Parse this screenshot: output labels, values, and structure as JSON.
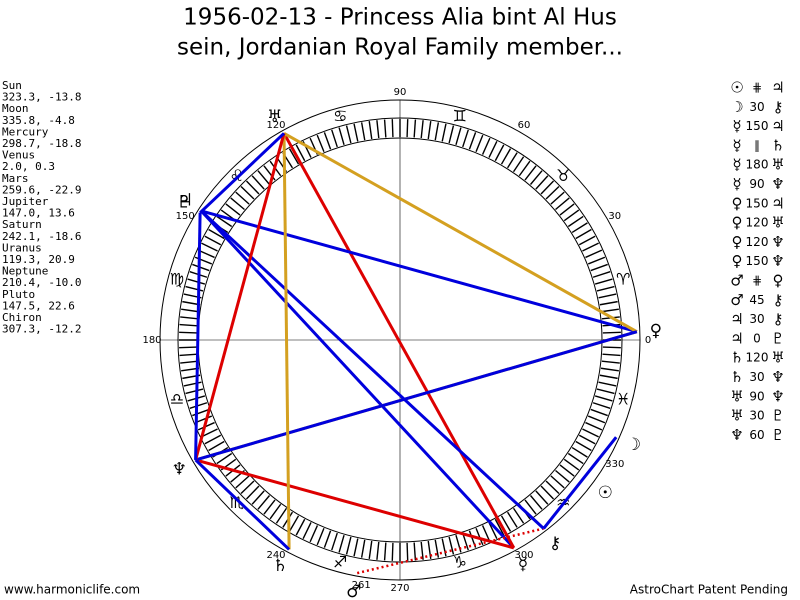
{
  "title": [
    "1956-02-13 - Princess Alia bint Al Hus",
    "sein, Jordanian Royal Family member..."
  ],
  "planets": [
    {
      "name": "Sun",
      "position": "323.3, -13.8",
      "glyph": "☉"
    },
    {
      "name": "Moon",
      "position": "335.8, -4.8",
      "glyph": "☽"
    },
    {
      "name": "Mercury",
      "position": "298.7, -18.8",
      "glyph": "☿"
    },
    {
      "name": "Venus",
      "position": "2.0, 0.3",
      "glyph": "♀"
    },
    {
      "name": "Mars",
      "position": "259.6, -22.9",
      "glyph": "♂"
    },
    {
      "name": "Jupiter",
      "position": "147.0, 13.6",
      "glyph": "♃"
    },
    {
      "name": "Saturn",
      "position": "242.1, -18.6",
      "glyph": "♄"
    },
    {
      "name": "Uranus",
      "position": "119.3, 20.9",
      "glyph": "♅"
    },
    {
      "name": "Neptune",
      "position": "210.4, -10.0",
      "glyph": "♆"
    },
    {
      "name": "Pluto",
      "position": "147.5, 22.6",
      "glyph": "♇"
    },
    {
      "name": "Chiron",
      "position": "307.3, -12.2",
      "glyph": "⚷"
    }
  ],
  "aspects": [
    {
      "a": "☉",
      "angle": "⋕",
      "b": "♃"
    },
    {
      "a": "☽",
      "angle": "30",
      "b": "⚷"
    },
    {
      "a": "☿",
      "angle": "150",
      "b": "♃"
    },
    {
      "a": "☿",
      "angle": "∥",
      "b": "♄"
    },
    {
      "a": "☿",
      "angle": "180",
      "b": "♅"
    },
    {
      "a": "☿",
      "angle": "90",
      "b": "♆"
    },
    {
      "a": "♀",
      "angle": "150",
      "b": "♃"
    },
    {
      "a": "♀",
      "angle": "120",
      "b": "♅"
    },
    {
      "a": "♀",
      "angle": "120",
      "b": "♆"
    },
    {
      "a": "♀",
      "angle": "150",
      "b": "♆"
    },
    {
      "a": "♂",
      "angle": "⋕",
      "b": "♀"
    },
    {
      "a": "♂",
      "angle": "45",
      "b": "⚷"
    },
    {
      "a": "♃",
      "angle": "30",
      "b": "⚷"
    },
    {
      "a": "♃",
      "angle": "0",
      "b": "♇"
    },
    {
      "a": "♄",
      "angle": "120",
      "b": "♅"
    },
    {
      "a": "♄",
      "angle": "30",
      "b": "♆"
    },
    {
      "a": "♅",
      "angle": "90",
      "b": "♆"
    },
    {
      "a": "♅",
      "angle": "30",
      "b": "♇"
    },
    {
      "a": "♆",
      "angle": "60",
      "b": "♇"
    }
  ],
  "signs": [
    "♈",
    "♉",
    "♊",
    "♋",
    "♌",
    "♍",
    "♎",
    "♏",
    "♐",
    "♑",
    "♒",
    "♓"
  ],
  "degree_labels": [
    0,
    30,
    60,
    90,
    120,
    150,
    180,
    240,
    261,
    270,
    300,
    330
  ],
  "footer": {
    "left": "www.harmoniclife.com",
    "right": "AstroChart Patent Pending"
  }
}
